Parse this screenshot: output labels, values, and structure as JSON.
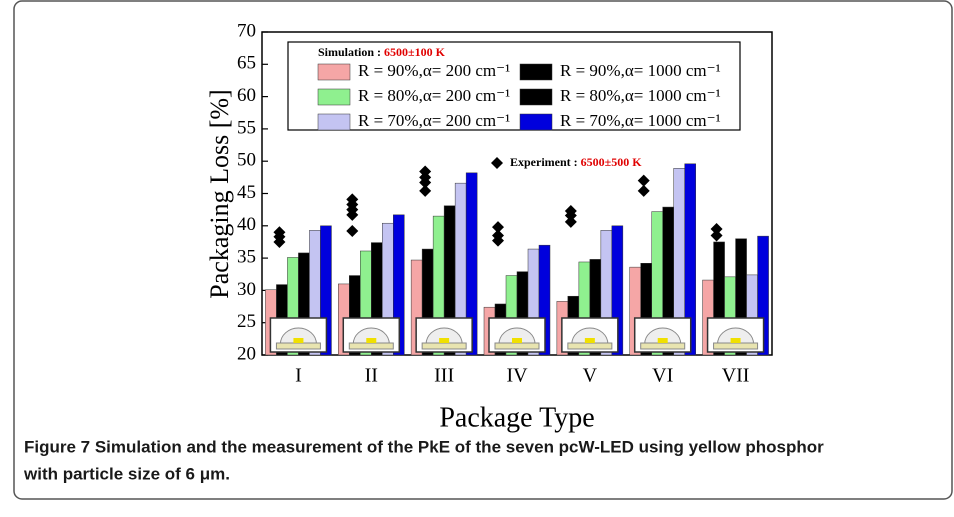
{
  "chart_data": {
    "type": "bar",
    "ylabel": "Packaging Loss [%]",
    "xlabel": "Package Type",
    "categories": [
      "I",
      "II",
      "III",
      "IV",
      "V",
      "VI",
      "VII"
    ],
    "ylim": [
      20,
      70
    ],
    "yticks": [
      20,
      25,
      30,
      35,
      40,
      45,
      50,
      55,
      60,
      65,
      70
    ],
    "legend_title": "Simulation : ",
    "legend_title_range": "6500±100 K",
    "series": [
      {
        "name": "R = 90%,α= 200 cm⁻¹",
        "color": "#f5a6a6",
        "hatch": false,
        "values": [
          30.1,
          31.0,
          34.7,
          27.4,
          28.3,
          33.6,
          31.6
        ]
      },
      {
        "name": "R = 90%,α= 1000 cm⁻¹",
        "color": "#e00000",
        "hatch": true,
        "values": [
          30.9,
          32.3,
          36.4,
          27.9,
          29.1,
          34.2,
          37.5
        ]
      },
      {
        "name": "R = 80%,α= 200 cm⁻¹",
        "color": "#8ff08f",
        "hatch": false,
        "values": [
          35.1,
          36.1,
          41.5,
          32.3,
          34.4,
          42.2,
          32.1
        ]
      },
      {
        "name": "R = 80%,α= 1000 cm⁻¹",
        "color": "#22cc22",
        "hatch": true,
        "values": [
          35.8,
          37.4,
          43.1,
          32.9,
          34.8,
          42.9,
          38.0
        ]
      },
      {
        "name": "R = 70%,α= 200 cm⁻¹",
        "color": "#c4c4f2",
        "hatch": false,
        "values": [
          39.3,
          40.4,
          46.6,
          36.4,
          39.3,
          48.9,
          32.4
        ]
      },
      {
        "name": "R = 70%,α= 1000 cm⁻¹",
        "color": "#0000dd",
        "hatch": false,
        "values": [
          40.0,
          41.7,
          48.2,
          37.0,
          40.0,
          49.6,
          38.4
        ]
      }
    ],
    "experiment": {
      "name": "Experiment : ",
      "range": "6500±500 K",
      "color": "#000000",
      "values": [
        [
          37.5,
          38.3,
          39.0
        ],
        [
          39.2,
          41.7,
          42.5,
          43.3,
          44.1
        ],
        [
          45.4,
          46.7,
          47.5,
          48.4
        ],
        [
          37.7,
          38.5,
          39.8
        ],
        [
          40.6,
          41.6,
          42.3
        ],
        [
          45.4,
          47.0
        ],
        [
          38.5,
          39.5
        ]
      ]
    }
  },
  "caption": [
    "Figure 7 Simulation and the measurement of the PkE of the seven pcW-LED using yellow phosphor",
    "with particle size of 6 μm."
  ]
}
